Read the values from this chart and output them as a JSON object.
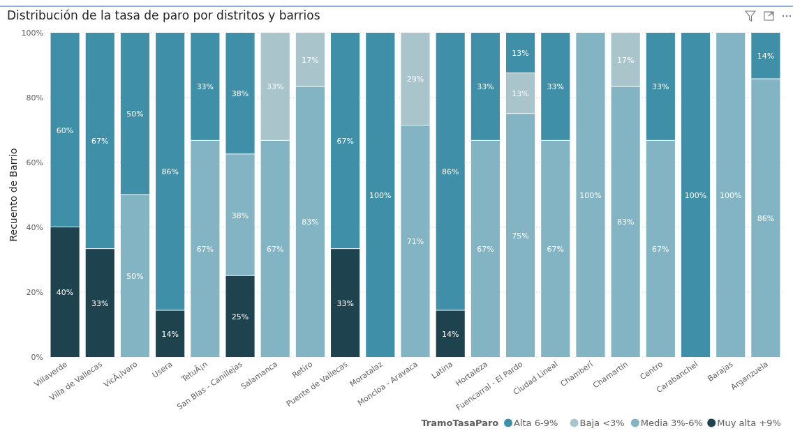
{
  "chart_data": {
    "type": "bar",
    "stacked": true,
    "title": "Distribución de la tasa de paro por distritos y barrios",
    "ylabel": "Recuento de Barrio",
    "legend_title": "TramoTasaParo",
    "legend": "bottom",
    "grid": "y",
    "categories": [
      "Villaverde",
      "Villa de Vallecas",
      "VicÃ¡lvaro",
      "Usera",
      "TetuÃ¡n",
      "San Blas - Canillejas",
      "Salamanca",
      "Retiro",
      "Puente de Vallecas",
      "Moratalaz",
      "Moncloa - Aravaca",
      "Latina",
      "Hortaleza",
      "Fuencarral - El Pardo",
      "Ciudad Lineal",
      "Chamberí",
      "Chamartín",
      "Centro",
      "Carabanchel",
      "Barajas",
      "Arganzuela"
    ],
    "ylim": [
      0,
      100
    ],
    "yticks": [
      {
        "value": 0,
        "label": "0%"
      },
      {
        "value": 20,
        "label": "20%"
      },
      {
        "value": 40,
        "label": "40%"
      },
      {
        "value": 60,
        "label": "60%"
      },
      {
        "value": 80,
        "label": "80%"
      },
      {
        "value": 100,
        "label": "100%"
      }
    ],
    "series": [
      {
        "name": "Muy alta +9%",
        "color": "#1f434e",
        "values": [
          40,
          33.3,
          null,
          14.3,
          null,
          25,
          null,
          null,
          33.3,
          null,
          null,
          14.3,
          null,
          null,
          null,
          null,
          null,
          null,
          null,
          null,
          null
        ],
        "value_labels": [
          "40%",
          "33%",
          null,
          "14%",
          null,
          "25%",
          null,
          null,
          "33%",
          null,
          null,
          "14%",
          null,
          null,
          null,
          null,
          null,
          null,
          null,
          null,
          null
        ]
      },
      {
        "name": "Media 3%-6%",
        "color": "#83b4c3",
        "values": [
          null,
          null,
          50,
          null,
          66.7,
          37.5,
          66.7,
          83.3,
          null,
          null,
          71.4,
          null,
          66.7,
          75,
          66.7,
          100,
          83.3,
          66.7,
          null,
          100,
          85.7
        ],
        "value_labels": [
          null,
          null,
          "50%",
          null,
          "67%",
          "38%",
          "67%",
          "83%",
          null,
          null,
          "71%",
          null,
          "67%",
          "75%",
          "67%",
          "100%",
          "83%",
          "67%",
          null,
          "100%",
          "86%"
        ]
      },
      {
        "name": "Baja <3%",
        "color": "#a9c4cb",
        "values": [
          null,
          null,
          null,
          null,
          null,
          null,
          33.3,
          16.7,
          null,
          null,
          28.6,
          null,
          null,
          12.5,
          null,
          null,
          16.7,
          null,
          null,
          null,
          null
        ],
        "value_labels": [
          null,
          null,
          null,
          null,
          null,
          null,
          "33%",
          "17%",
          null,
          null,
          "29%",
          null,
          null,
          "13%",
          null,
          null,
          "17%",
          null,
          null,
          null,
          null
        ]
      },
      {
        "name": "Alta 6-9%",
        "color": "#3e8fa7",
        "values": [
          60,
          66.7,
          50,
          85.7,
          33.3,
          37.5,
          null,
          null,
          66.7,
          100,
          null,
          85.7,
          33.3,
          12.5,
          33.3,
          null,
          null,
          33.3,
          100,
          null,
          14.3
        ],
        "value_labels": [
          "60%",
          "67%",
          "50%",
          "86%",
          "33%",
          "38%",
          null,
          null,
          "67%",
          "100%",
          null,
          "86%",
          "33%",
          "13%",
          "33%",
          null,
          null,
          "33%",
          "100%",
          null,
          "14%"
        ]
      }
    ]
  }
}
